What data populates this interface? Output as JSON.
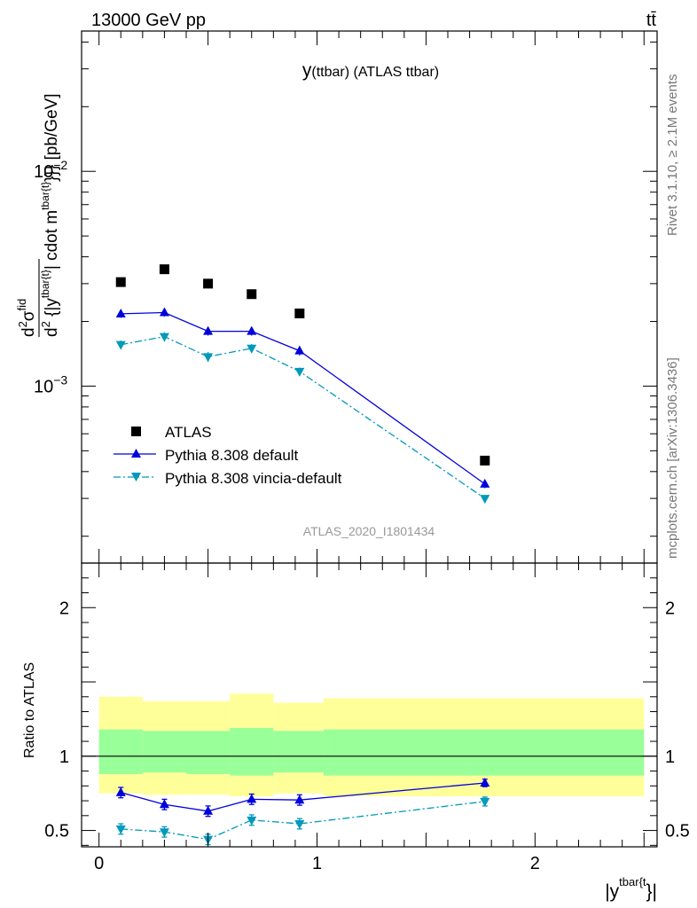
{
  "header": {
    "left": "13000 GeV pp",
    "right": "tt̄"
  },
  "side_text": {
    "rivet": "Rivet 3.1.10, ≥ 2.1M events",
    "mcplots": "mcplots.cern.ch [arXiv:1306.3436]"
  },
  "chart_data": [
    {
      "type": "scatter",
      "title": "y(ttbar) (ATLAS ttbar)",
      "title_main": "y",
      "title_sub": "(ttbar) (ATLAS ttbar)",
      "analysis": "ATLAS_2020_I1801434",
      "ylabel": "d²σ^fid / d² {|y^tbar{t}| cdot m^tbar{t}}} [pb/GeV]",
      "yscale": "log",
      "xlim": [
        -0.08,
        2.56
      ],
      "ylim": [
        0.00015,
        0.045
      ],
      "yticks_major": [
        {
          "value": 0.01,
          "label_base": "10",
          "label_exp": "−2"
        },
        {
          "value": 0.001,
          "label_base": "10",
          "label_exp": "−3"
        }
      ],
      "legend_position": "lower-left",
      "series": [
        {
          "name": "ATLAS",
          "marker": "square",
          "color": "#000000",
          "line": "none",
          "x": [
            0.1,
            0.3,
            0.5,
            0.7,
            0.92,
            1.77
          ],
          "y": [
            0.00305,
            0.0035,
            0.003,
            0.00268,
            0.00218,
            0.00045
          ],
          "yerr": [
            4e-05,
            4e-05,
            4e-05,
            4e-05,
            3e-05,
            8e-06
          ]
        },
        {
          "name": "Pythia 8.308 default",
          "marker": "triangle-up",
          "color": "#0000dd",
          "line": "solid",
          "x": [
            0.1,
            0.3,
            0.5,
            0.7,
            0.92,
            1.77
          ],
          "y": [
            0.00217,
            0.0022,
            0.0018,
            0.0018,
            0.00146,
            0.00035
          ],
          "yerr": [
            9e-05,
            9e-05,
            8e-05,
            8e-05,
            7e-05,
            1.5e-05
          ]
        },
        {
          "name": "Pythia 8.308 vincia-default",
          "marker": "triangle-down",
          "color": "#0099bb",
          "line": "dashdot",
          "x": [
            0.1,
            0.3,
            0.5,
            0.7,
            0.92,
            1.77
          ],
          "y": [
            0.00156,
            0.0017,
            0.00137,
            0.0015,
            0.00117,
            0.0003
          ],
          "yerr": [
            7e-05,
            8e-05,
            7e-05,
            7e-05,
            5e-05,
            1e-05
          ]
        }
      ]
    },
    {
      "type": "scatter",
      "ylabel": "Ratio to ATLAS",
      "xlabel": "|y^tbar{t}}|",
      "xlabel_main": "|y",
      "xlabel_sup": "tbar{t",
      "xlabel_tail": "}|",
      "xlim": [
        -0.08,
        2.56
      ],
      "ylim": [
        0.39,
        2.3
      ],
      "xticks": [
        0,
        1,
        2
      ],
      "yticks": [
        0.5,
        1,
        2
      ],
      "reference": 1,
      "bands": {
        "inner_color": "#99ff99",
        "outer_color": "#ffff99",
        "bins": [
          {
            "x0": 0.0,
            "x1": 0.2,
            "inner": [
              0.88,
              1.18
            ],
            "outer": [
              0.75,
              1.4
            ]
          },
          {
            "x0": 0.2,
            "x1": 0.4,
            "inner": [
              0.89,
              1.17
            ],
            "outer": [
              0.74,
              1.37
            ]
          },
          {
            "x0": 0.4,
            "x1": 0.6,
            "inner": [
              0.88,
              1.17
            ],
            "outer": [
              0.74,
              1.37
            ]
          },
          {
            "x0": 0.6,
            "x1": 0.8,
            "inner": [
              0.87,
              1.19
            ],
            "outer": [
              0.73,
              1.42
            ]
          },
          {
            "x0": 0.8,
            "x1": 1.03,
            "inner": [
              0.89,
              1.17
            ],
            "outer": [
              0.75,
              1.36
            ]
          },
          {
            "x0": 1.03,
            "x1": 2.5,
            "inner": [
              0.87,
              1.18
            ],
            "outer": [
              0.73,
              1.39
            ]
          }
        ]
      },
      "series": [
        {
          "name": "Pythia 8.308 default",
          "marker": "triangle-up",
          "color": "#0000dd",
          "line": "solid",
          "x": [
            0.1,
            0.3,
            0.5,
            0.7,
            0.92,
            1.77
          ],
          "y": [
            0.755,
            0.675,
            0.63,
            0.71,
            0.705,
            0.82
          ],
          "yerr": [
            0.035,
            0.035,
            0.035,
            0.035,
            0.035,
            0.025
          ]
        },
        {
          "name": "Pythia 8.308 vincia-default",
          "marker": "triangle-down",
          "color": "#0099bb",
          "line": "dashdot",
          "x": [
            0.1,
            0.3,
            0.5,
            0.7,
            0.92,
            1.77
          ],
          "y": [
            0.51,
            0.49,
            0.44,
            0.57,
            0.545,
            0.695
          ],
          "yerr": [
            0.035,
            0.035,
            0.035,
            0.035,
            0.035,
            0.03
          ]
        }
      ]
    }
  ]
}
